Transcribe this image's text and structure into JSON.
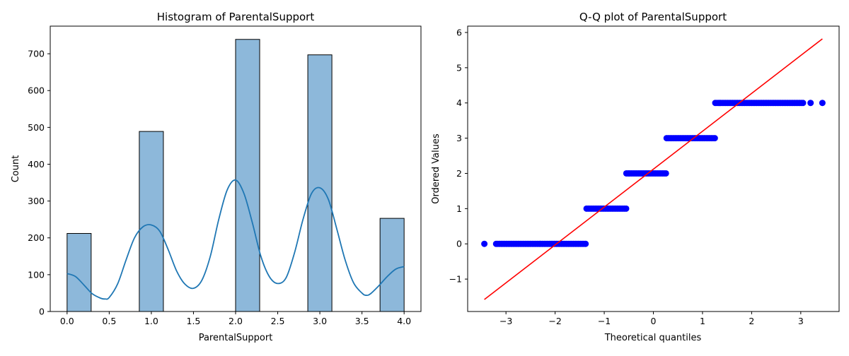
{
  "chart_data": [
    {
      "type": "bar",
      "subtype": "histogram-with-kde",
      "title": "Histogram of ParentalSupport",
      "xlabel": "ParentalSupport",
      "ylabel": "Count",
      "xlim": [
        -0.2,
        4.2
      ],
      "ylim": [
        0,
        775
      ],
      "xticks": [
        0.0,
        0.5,
        1.0,
        1.5,
        2.0,
        2.5,
        3.0,
        3.5,
        4.0
      ],
      "xtick_labels": [
        "0.0",
        "0.5",
        "1.0",
        "1.5",
        "2.0",
        "2.5",
        "3.0",
        "3.5",
        "4.0"
      ],
      "yticks": [
        0,
        100,
        200,
        300,
        400,
        500,
        600,
        700
      ],
      "ytick_labels": [
        "0",
        "100",
        "200",
        "300",
        "400",
        "500",
        "600",
        "700"
      ],
      "bins": [
        {
          "x0": 0.0,
          "x1": 0.2857,
          "count": 212
        },
        {
          "x0": 0.8571,
          "x1": 1.1429,
          "count": 489
        },
        {
          "x0": 2.0,
          "x1": 2.2857,
          "count": 739
        },
        {
          "x0": 2.8571,
          "x1": 3.1429,
          "count": 697
        },
        {
          "x0": 3.7143,
          "x1": 4.0,
          "count": 253
        }
      ],
      "kde": {
        "x": [
          0.0,
          0.1,
          0.2,
          0.3,
          0.4,
          0.45,
          0.5,
          0.6,
          0.7,
          0.8,
          0.9,
          1.0,
          1.1,
          1.2,
          1.3,
          1.4,
          1.5,
          1.6,
          1.7,
          1.8,
          1.9,
          2.0,
          2.1,
          2.2,
          2.3,
          2.4,
          2.5,
          2.6,
          2.7,
          2.8,
          2.9,
          3.0,
          3.1,
          3.2,
          3.3,
          3.4,
          3.5,
          3.55,
          3.6,
          3.7,
          3.8,
          3.9,
          4.0
        ],
        "y": [
          103,
          95,
          72,
          48,
          36,
          34,
          38,
          75,
          140,
          200,
          230,
          235,
          218,
          168,
          110,
          74,
          63,
          85,
          150,
          250,
          330,
          357,
          320,
          240,
          150,
          95,
          76,
          92,
          160,
          250,
          320,
          336,
          305,
          225,
          140,
          78,
          50,
          44,
          48,
          70,
          95,
          115,
          122
        ]
      },
      "bar_color": "#8db8da",
      "line_color": "#1f77b4"
    },
    {
      "type": "scatter",
      "title": "Q-Q plot of ParentalSupport",
      "xlabel": "Theoretical quantiles",
      "ylabel": "Ordered Values",
      "xlim": [
        -3.78,
        3.78
      ],
      "ylim": [
        -1.92,
        6.18
      ],
      "xticks": [
        -3,
        -2,
        -1,
        0,
        1,
        2,
        3
      ],
      "xtick_labels": [
        "−3",
        "−2",
        "−1",
        "0",
        "1",
        "2",
        "3"
      ],
      "yticks": [
        -1,
        0,
        1,
        2,
        3,
        4,
        5,
        6
      ],
      "ytick_labels": [
        "−1",
        "0",
        "1",
        "2",
        "3",
        "4",
        "5",
        "6"
      ],
      "point_groups": [
        {
          "y": 0,
          "x_min": -3.2,
          "x_max": -1.36,
          "outliers": [
            -3.44
          ]
        },
        {
          "y": 1,
          "x_min": -1.36,
          "x_max": -0.55,
          "outliers": []
        },
        {
          "y": 2,
          "x_min": -0.55,
          "x_max": 0.27,
          "outliers": []
        },
        {
          "y": 3,
          "x_min": 0.27,
          "x_max": 1.26,
          "outliers": []
        },
        {
          "y": 4,
          "x_min": 1.26,
          "x_max": 3.05,
          "outliers": [
            3.2,
            3.44
          ]
        }
      ],
      "fit_line": {
        "x": [
          -3.44,
          3.44
        ],
        "y": [
          -1.58,
          5.82
        ]
      },
      "point_color": "#0000ff",
      "line_color": "#ff0000"
    }
  ]
}
